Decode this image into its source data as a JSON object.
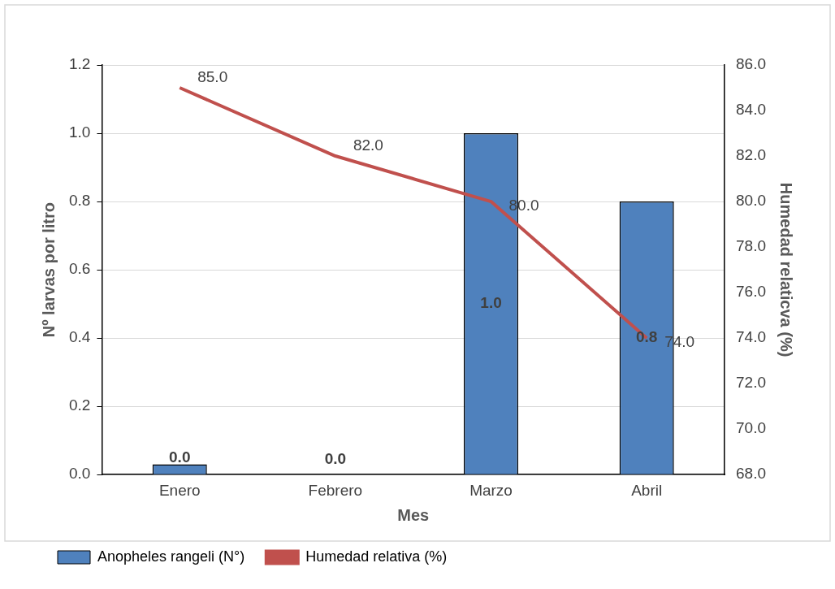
{
  "chart_data": {
    "type": "bar",
    "xlabel": "Mes",
    "ylabel": "Nº larvas por litro",
    "y2label": "Humedad relaticva (%)",
    "categories": [
      "Enero",
      "Febrero",
      "Marzo",
      "Abril"
    ],
    "series": [
      {
        "name": "Anopheles rangeli (N°)",
        "color": "#4f81bd",
        "values": [
          0.03,
          0,
          1.0,
          0.8
        ],
        "value_labels": [
          "0.0",
          "0.0",
          "1.0",
          "0.8"
        ]
      },
      {
        "name": "Humedad relativa (%)",
        "type": "line",
        "axis": "y2",
        "color": "#c0504d",
        "values": [
          85.0,
          82.0,
          80.0,
          74.0
        ],
        "value_labels": [
          "85.0",
          "82.0",
          "80.0",
          "74.0"
        ]
      }
    ],
    "ylim": [
      0,
      1.2
    ],
    "yticks": [
      {
        "value": 0,
        "label": "0.0"
      },
      {
        "value": 0.2,
        "label": "0.2"
      },
      {
        "value": 0.4,
        "label": "0.4"
      },
      {
        "value": 0.6,
        "label": "0.6"
      },
      {
        "value": 0.8,
        "label": "0.8"
      },
      {
        "value": 1.0,
        "label": "1.0"
      },
      {
        "value": 1.2,
        "label": "1.2"
      }
    ],
    "y2lim": [
      68,
      86
    ],
    "y2ticks": [
      {
        "value": 68,
        "label": "68.0"
      },
      {
        "value": 70,
        "label": "70.0"
      },
      {
        "value": 72,
        "label": "72.0"
      },
      {
        "value": 74,
        "label": "74.0"
      },
      {
        "value": 76,
        "label": "76.0"
      },
      {
        "value": 78,
        "label": "78.0"
      },
      {
        "value": 80,
        "label": "80.0"
      },
      {
        "value": 82,
        "label": "82.0"
      },
      {
        "value": 84,
        "label": "84.0"
      },
      {
        "value": 86,
        "label": "86.0"
      }
    ],
    "grid": "y",
    "legend": "bottom",
    "marker": "none",
    "line_style": "solid"
  }
}
